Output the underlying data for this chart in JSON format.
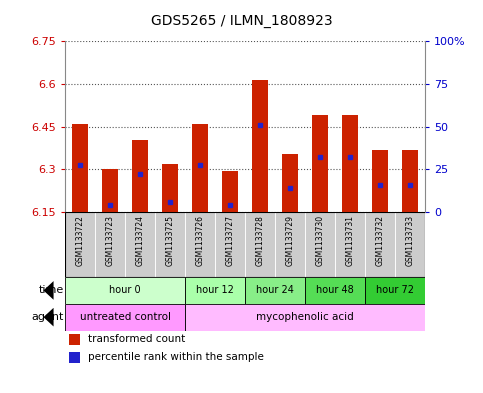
{
  "title": "GDS5265 / ILMN_1808923",
  "samples": [
    "GSM1133722",
    "GSM1133723",
    "GSM1133724",
    "GSM1133725",
    "GSM1133726",
    "GSM1133727",
    "GSM1133728",
    "GSM1133729",
    "GSM1133730",
    "GSM1133731",
    "GSM1133732",
    "GSM1133733"
  ],
  "bar_tops": [
    6.46,
    6.3,
    6.405,
    6.32,
    6.46,
    6.295,
    6.615,
    6.355,
    6.49,
    6.49,
    6.37,
    6.37
  ],
  "bar_base": 6.15,
  "blue_dots": [
    6.315,
    6.175,
    6.285,
    6.185,
    6.315,
    6.175,
    6.455,
    6.235,
    6.345,
    6.345,
    6.245,
    6.245
  ],
  "ylim": [
    6.15,
    6.75
  ],
  "yticks": [
    6.15,
    6.3,
    6.45,
    6.6,
    6.75
  ],
  "ytick_labels": [
    "6.15",
    "6.3",
    "6.45",
    "6.6",
    "6.75"
  ],
  "right_ytick_pct": [
    0,
    25,
    50,
    75,
    100
  ],
  "right_ytick_labels": [
    "0",
    "25",
    "50",
    "75",
    "100%"
  ],
  "bar_color": "#CC2200",
  "dot_color": "#2222CC",
  "bg_color": "#FFFFFF",
  "dotted_grid_yticks": [
    6.15,
    6.3,
    6.45,
    6.6,
    6.75
  ],
  "time_spans": [
    [
      0,
      3,
      "hour 0",
      "#CCFFCC"
    ],
    [
      4,
      5,
      "hour 12",
      "#AAFFAA"
    ],
    [
      6,
      7,
      "hour 24",
      "#88EE88"
    ],
    [
      8,
      9,
      "hour 48",
      "#55DD55"
    ],
    [
      10,
      11,
      "hour 72",
      "#33CC33"
    ]
  ],
  "agent_spans": [
    [
      0,
      3,
      "untreated control",
      "#FF99FF"
    ],
    [
      4,
      11,
      "mycophenolic acid",
      "#FFBBFF"
    ]
  ],
  "time_row_label": "time",
  "agent_row_label": "agent",
  "legend_items": [
    {
      "color": "#CC2200",
      "label": "transformed count"
    },
    {
      "color": "#2222CC",
      "label": "percentile rank within the sample"
    }
  ],
  "bar_width": 0.55,
  "left_label_color": "#CC0000",
  "right_label_color": "#0000CC",
  "sample_box_color": "#CCCCCC",
  "grid_color": "#555555"
}
